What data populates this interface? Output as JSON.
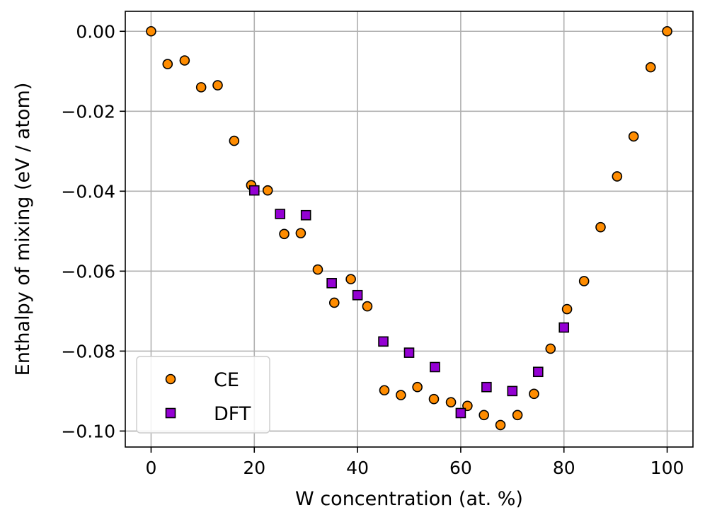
{
  "chart_data": {
    "type": "scatter",
    "title": "",
    "xlabel": "W concentration (at. %)",
    "ylabel": "Enthalpy of mixing (eV / atom)",
    "xlim": [
      -5,
      105
    ],
    "ylim": [
      -0.104,
      0.005
    ],
    "grid": true,
    "legend_position": "lower-left",
    "x_ticks": [
      0,
      20,
      40,
      60,
      80,
      100
    ],
    "x_tick_labels": [
      "0",
      "20",
      "40",
      "60",
      "80",
      "100"
    ],
    "y_ticks": [
      0.0,
      -0.02,
      -0.04,
      -0.06,
      -0.08,
      -0.1
    ],
    "y_tick_labels": [
      "0.00",
      "−0.02",
      "−0.04",
      "−0.06",
      "−0.08",
      "−0.10"
    ],
    "series": [
      {
        "name": "CE",
        "marker": "circle",
        "color": "#ff8c00",
        "edge_color": "#000000",
        "x": [
          0,
          3.2,
          6.5,
          9.7,
          12.9,
          16.1,
          19.4,
          22.6,
          25.8,
          29.0,
          32.3,
          35.5,
          38.7,
          41.9,
          45.2,
          48.4,
          51.6,
          54.8,
          58.1,
          61.3,
          64.5,
          67.7,
          71.0,
          74.2,
          77.4,
          80.6,
          83.9,
          87.1,
          90.3,
          93.5,
          96.8,
          100
        ],
        "y": [
          0.0,
          -0.0082,
          -0.0073,
          -0.014,
          -0.0135,
          -0.0274,
          -0.0385,
          -0.0398,
          -0.0507,
          -0.0505,
          -0.0596,
          -0.0679,
          -0.062,
          -0.0688,
          -0.0898,
          -0.091,
          -0.089,
          -0.092,
          -0.0928,
          -0.0937,
          -0.096,
          -0.0985,
          -0.096,
          -0.0907,
          -0.0794,
          -0.0695,
          -0.0625,
          -0.049,
          -0.0363,
          -0.0263,
          -0.009,
          0.0
        ]
      },
      {
        "name": "DFT",
        "marker": "square",
        "color": "#9400d3",
        "edge_color": "#000000",
        "x": [
          20,
          25,
          30,
          35,
          40,
          45,
          50,
          55,
          60,
          65,
          70,
          75,
          80
        ],
        "y": [
          -0.0398,
          -0.0457,
          -0.046,
          -0.063,
          -0.066,
          -0.0776,
          -0.0804,
          -0.084,
          -0.0955,
          -0.089,
          -0.09,
          -0.0852,
          -0.0741
        ]
      }
    ]
  }
}
